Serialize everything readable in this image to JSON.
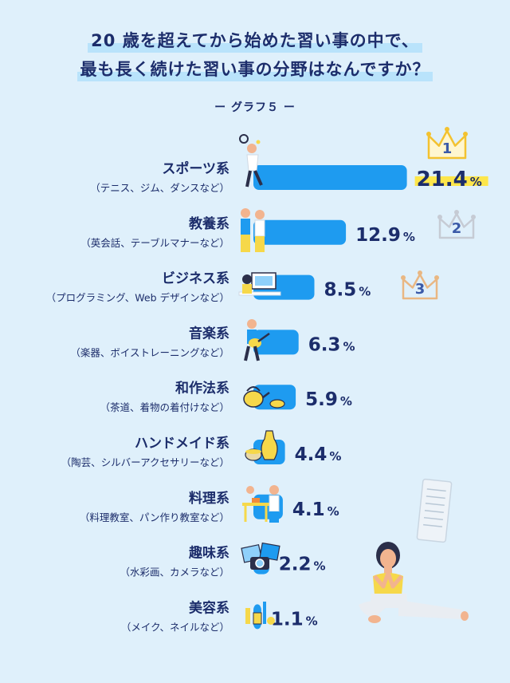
{
  "title": {
    "line1": "20 歳を超えてから始めた習い事の中で、",
    "line2": "最も長く続けた習い事の分野はなんですか？"
  },
  "subtitle": "ー グラフ５ ー",
  "colors": {
    "bar": "#1e9bf0",
    "text": "#1c2d6b",
    "background": "#dff0fb",
    "highlight": "#fde64b",
    "crown_gold": "#f3c230",
    "crown_silver": "#c6cbd4",
    "crown_bronze": "#e9b783"
  },
  "chart_data": {
    "type": "bar",
    "orientation": "horizontal",
    "unit": "%",
    "categories": [
      {
        "name": "スポーツ系",
        "sub": "（テニス、ジム、ダンスなど）",
        "value": 21.4,
        "rank": "1"
      },
      {
        "name": "教養系",
        "sub": "（英会話、テーブルマナーなど）",
        "value": 12.9,
        "rank": "2"
      },
      {
        "name": "ビジネス系",
        "sub": "（プログラミング、Web デザインなど）",
        "value": 8.5,
        "rank": "3"
      },
      {
        "name": "音楽系",
        "sub": "（楽器、ボイストレーニングなど）",
        "value": 6.3,
        "rank": ""
      },
      {
        "name": "和作法系",
        "sub": "（茶道、着物の着付けなど）",
        "value": 5.9,
        "rank": ""
      },
      {
        "name": "ハンドメイド系",
        "sub": "（陶芸、シルバーアクセサリーなど）",
        "value": 4.4,
        "rank": ""
      },
      {
        "name": "料理系",
        "sub": "（料理教室、パン作り教室など）",
        "value": 4.1,
        "rank": ""
      },
      {
        "name": "趣味系",
        "sub": "（水彩画、カメラなど）",
        "value": 2.2,
        "rank": ""
      },
      {
        "name": "美容系",
        "sub": "（メイク、ネイルなど）",
        "value": 1.1,
        "rank": ""
      }
    ]
  },
  "icons": [
    "tennis-player-icon",
    "teacher-student-icon",
    "computer-desk-icon",
    "guitarist-icon",
    "teapot-icon",
    "pottery-icon",
    "cooking-icon",
    "camera-photos-icon",
    "cosmetics-icon",
    "yoga-woman-icon",
    "notepad-icon"
  ]
}
